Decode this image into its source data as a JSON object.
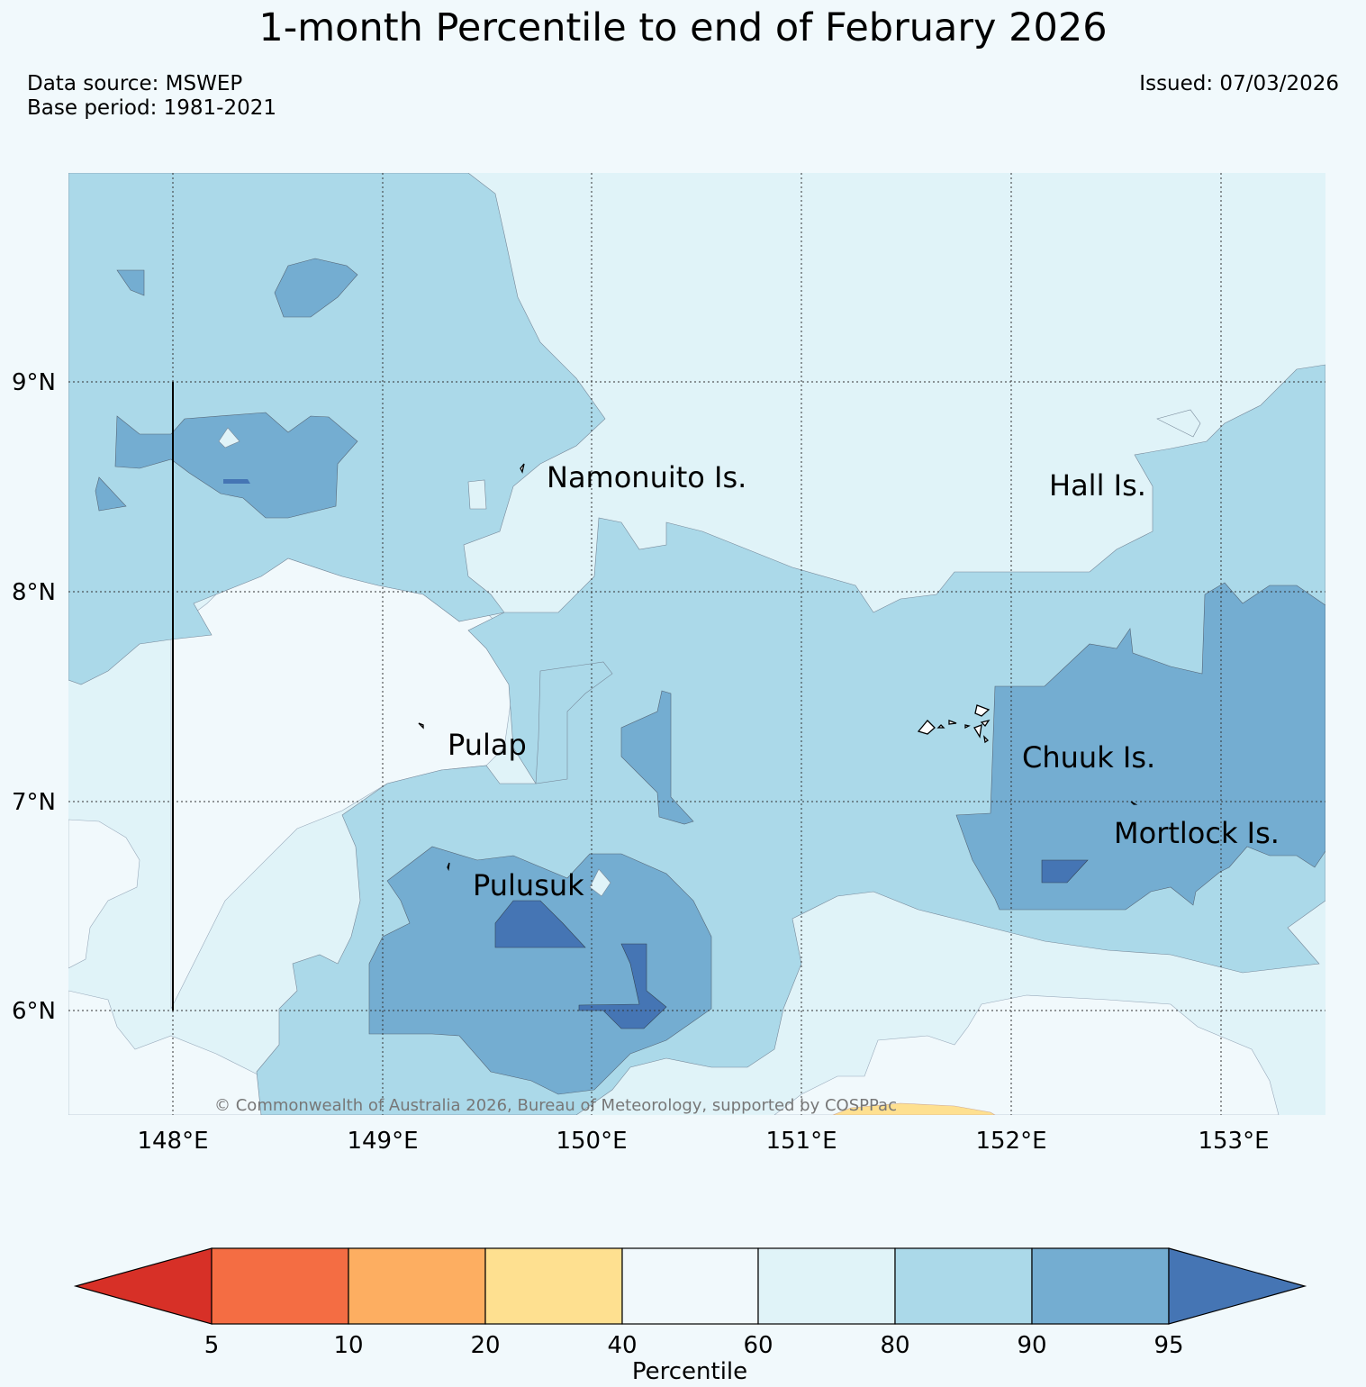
{
  "title": "1-month Percentile to end of February 2026",
  "data_source": "Data source: MSWEP",
  "base_period": "Base period: 1981-2021",
  "issued": "Issued: 07/03/2026",
  "copyright": "© Commonwealth of Australia 2026, Bureau of Meteorology, supported by COSPPac",
  "map": {
    "lat_labels": [
      "9°N",
      "8°N",
      "7°N",
      "6°N"
    ],
    "lon_labels": [
      "148°E",
      "149°E",
      "150°E",
      "151°E",
      "152°E",
      "153°E"
    ],
    "places": [
      {
        "name": "Namonuito Is."
      },
      {
        "name": "Hall Is."
      },
      {
        "name": "Pulap"
      },
      {
        "name": "Chuuk Is."
      },
      {
        "name": "Mortlock Is."
      },
      {
        "name": "Pulusuk"
      }
    ]
  },
  "colorbar": {
    "label": "Percentile",
    "ticks": [
      "5",
      "10",
      "20",
      "40",
      "60",
      "80",
      "90",
      "95"
    ],
    "colors": {
      "below_5": "#d73027",
      "5_10": "#f46d43",
      "10_20": "#fdae61",
      "20_40": "#fee090",
      "40_60": "#f1f9fc",
      "60_80": "#e0f3f8",
      "80_90": "#abd9e9",
      "90_95": "#74add1",
      "above_95": "#4575b4"
    }
  }
}
